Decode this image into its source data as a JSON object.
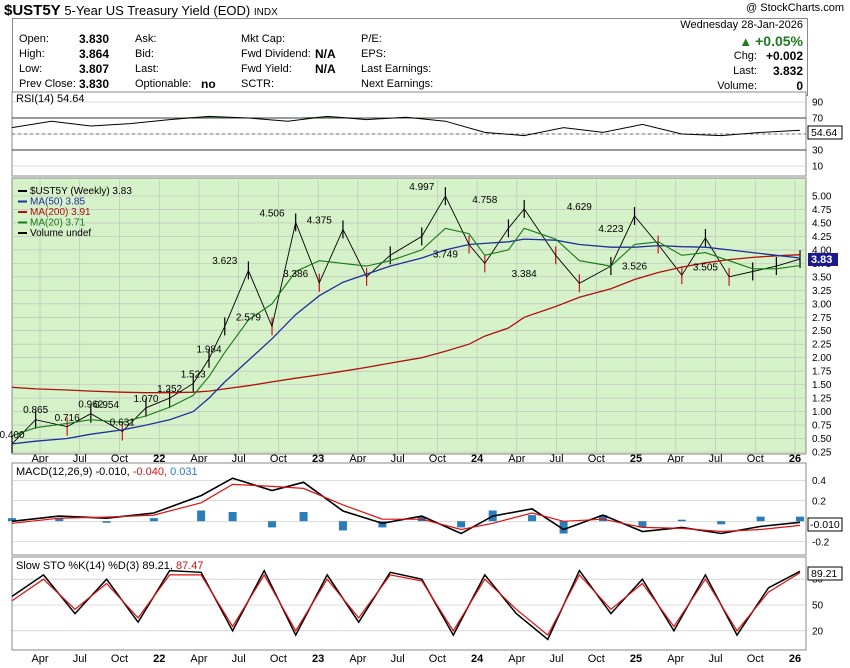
{
  "header": {
    "symbol": "$UST5Y",
    "name": "5-Year US Treasury Yield (EOD)",
    "exchange": "INDX",
    "watermark": "@ StockCharts.com",
    "date": "Wednesday  28-Jan-2026"
  },
  "quote": {
    "open_label": "Open:",
    "open": "3.830",
    "high_label": "High:",
    "high": "3.864",
    "low_label": "Low:",
    "low": "3.807",
    "prev_label": "Prev Close:",
    "prev": "3.830",
    "ask_label": "Ask:",
    "bid_label": "Bid:",
    "last_label": "Last:",
    "optionable_label": "Optionable:",
    "optionable": "no",
    "mktcap_label": "Mkt Cap:",
    "fwddiv_label": "Fwd Dividend:",
    "fwddiv": "N/A",
    "fwdyield_label": "Fwd Yield:",
    "fwdyield": "N/A",
    "sctr_label": "SCTR:",
    "pe_label": "P/E:",
    "eps_label": "EPS:",
    "lastearn_label": "Last Earnings:",
    "nextearn_label": "Next Earnings:",
    "chg_pct": "+0.05%",
    "chg_label": "Chg:",
    "chg": "+0.002",
    "last_price_label": "Last:",
    "last_price": "3.832",
    "volume_label": "Volume:",
    "volume": "0"
  },
  "colors": {
    "panel_bg": "#d6f2c8",
    "price_bar": "#000000",
    "down_bar": "#d4141c",
    "ma50": "#1f2f9c",
    "ma200": "#b01010",
    "ma20": "#157a15",
    "macd_line": "#000000",
    "signal_line": "#dd1111",
    "hist": "#2a7db8",
    "rsi_fill": "#2e7d2e",
    "price_tag": "#1a1a8c"
  },
  "chart_data": [
    {
      "type": "line",
      "panel": "RSI",
      "title": "RSI(14) 54.64",
      "label": "RSI(14) 54.64",
      "current": "54.64",
      "ylim": [
        0,
        100
      ],
      "yticks": [
        "90",
        "70",
        "50",
        "30",
        "10"
      ],
      "overbought": 70,
      "oversold": 30,
      "x": [
        0,
        0.05,
        0.1,
        0.15,
        0.2,
        0.25,
        0.3,
        0.35,
        0.4,
        0.45,
        0.5,
        0.55,
        0.6,
        0.65,
        0.7,
        0.75,
        0.8,
        0.85,
        0.9,
        0.95,
        1.0
      ],
      "values": [
        58,
        66,
        60,
        63,
        68,
        72,
        70,
        66,
        72,
        68,
        71,
        66,
        52,
        48,
        58,
        52,
        62,
        50,
        48,
        52,
        54.64
      ]
    },
    {
      "type": "line",
      "panel": "Price",
      "title": "$UST5Y (Weekly) 3.83",
      "legend": [
        {
          "label": "$UST5Y (Weekly) 3.83",
          "color": "#000000"
        },
        {
          "label": "MA(50) 3.85",
          "color": "#1f2f9c"
        },
        {
          "label": "MA(200) 3.91",
          "color": "#b01010"
        },
        {
          "label": "MA(20) 3.71",
          "color": "#157a15"
        },
        {
          "label": "Volume undef",
          "color": "#000000"
        }
      ],
      "current_tag": "3.83",
      "ylim": [
        0.25,
        5.0
      ],
      "yticks": [
        "5.00",
        "4.75",
        "4.50",
        "4.25",
        "4.00",
        "3.75",
        "3.50",
        "3.25",
        "3.00",
        "2.75",
        "2.50",
        "2.25",
        "2.00",
        "1.75",
        "1.50",
        "1.25",
        "1.00",
        "0.75",
        "0.50",
        "0.25"
      ],
      "xticks": [
        "Apr",
        "Jul",
        "Oct",
        "22",
        "Apr",
        "Jul",
        "Oct",
        "23",
        "Apr",
        "Jul",
        "Oct",
        "24",
        "Apr",
        "Jul",
        "Oct",
        "25",
        "Apr",
        "Jul",
        "Oct",
        "26"
      ],
      "x": [
        0.0,
        0.03,
        0.07,
        0.1,
        0.14,
        0.17,
        0.2,
        0.23,
        0.25,
        0.27,
        0.3,
        0.33,
        0.36,
        0.39,
        0.42,
        0.45,
        0.48,
        0.52,
        0.55,
        0.58,
        0.6,
        0.63,
        0.65,
        0.69,
        0.72,
        0.76,
        0.79,
        0.82,
        0.85,
        0.88,
        0.91,
        0.94,
        0.97,
        1.0
      ],
      "series": [
        {
          "name": "$UST5Y (Weekly)",
          "values": [
            0.4,
            0.85,
            0.72,
            0.96,
            0.63,
            1.07,
            1.25,
            1.52,
            1.98,
            2.58,
            3.62,
            2.58,
            4.51,
            3.39,
            4.38,
            3.5,
            3.9,
            4.25,
            4.997,
            4.1,
            3.75,
            4.4,
            4.76,
            3.9,
            3.38,
            3.7,
            4.629,
            4.1,
            3.53,
            4.22,
            3.5,
            3.6,
            3.7,
            3.83
          ]
        },
        {
          "name": "MA(20)",
          "values": [
            0.55,
            0.7,
            0.78,
            0.85,
            0.8,
            0.92,
            1.08,
            1.3,
            1.65,
            2.1,
            2.7,
            3.0,
            3.6,
            3.8,
            3.75,
            3.7,
            3.8,
            4.0,
            4.4,
            4.3,
            3.9,
            4.0,
            4.4,
            4.2,
            3.8,
            3.7,
            4.1,
            4.15,
            3.9,
            3.95,
            3.8,
            3.65,
            3.65,
            3.71
          ]
        },
        {
          "name": "MA(50)",
          "values": [
            0.4,
            0.45,
            0.5,
            0.58,
            0.66,
            0.75,
            0.85,
            1.0,
            1.25,
            1.55,
            1.95,
            2.35,
            2.8,
            3.15,
            3.4,
            3.55,
            3.7,
            3.85,
            4.0,
            4.1,
            4.12,
            4.15,
            4.2,
            4.18,
            4.1,
            4.05,
            4.05,
            4.08,
            4.06,
            4.05,
            4.0,
            3.95,
            3.9,
            3.85
          ]
        },
        {
          "name": "MA(200)",
          "values": [
            1.45,
            1.42,
            1.4,
            1.38,
            1.36,
            1.35,
            1.35,
            1.36,
            1.38,
            1.42,
            1.48,
            1.55,
            1.62,
            1.68,
            1.75,
            1.82,
            1.9,
            2.0,
            2.12,
            2.25,
            2.4,
            2.55,
            2.75,
            2.95,
            3.12,
            3.28,
            3.45,
            3.58,
            3.68,
            3.76,
            3.82,
            3.86,
            3.89,
            3.91
          ]
        }
      ],
      "annotations": [
        {
          "text": "0.400",
          "x": 0.0,
          "y": 0.4
        },
        {
          "text": "0.865",
          "x": 0.03,
          "y": 0.865
        },
        {
          "text": "0.716",
          "x": 0.07,
          "y": 0.716
        },
        {
          "text": "0.962",
          "x": 0.1,
          "y": 0.962
        },
        {
          "text": "0.954",
          "x": 0.12,
          "y": 0.954
        },
        {
          "text": "0.631",
          "x": 0.14,
          "y": 0.631
        },
        {
          "text": "1.070",
          "x": 0.17,
          "y": 1.07
        },
        {
          "text": "1.252",
          "x": 0.2,
          "y": 1.252
        },
        {
          "text": "1.523",
          "x": 0.23,
          "y": 1.523
        },
        {
          "text": "1.984",
          "x": 0.25,
          "y": 1.984
        },
        {
          "text": "2.579",
          "x": 0.3,
          "y": 2.579
        },
        {
          "text": "3.623",
          "x": 0.27,
          "y": 3.623
        },
        {
          "text": "4.506",
          "x": 0.33,
          "y": 4.506
        },
        {
          "text": "3.386",
          "x": 0.36,
          "y": 3.386
        },
        {
          "text": "4.375",
          "x": 0.39,
          "y": 4.375
        },
        {
          "text": "4.997",
          "x": 0.52,
          "y": 4.997
        },
        {
          "text": "3.749",
          "x": 0.55,
          "y": 3.749
        },
        {
          "text": "4.758",
          "x": 0.6,
          "y": 4.758
        },
        {
          "text": "3.384",
          "x": 0.65,
          "y": 3.384
        },
        {
          "text": "4.629",
          "x": 0.72,
          "y": 4.629
        },
        {
          "text": "4.223",
          "x": 0.76,
          "y": 4.223
        },
        {
          "text": "3.526",
          "x": 0.79,
          "y": 3.526
        },
        {
          "text": "3.505",
          "x": 0.88,
          "y": 3.505
        }
      ]
    },
    {
      "type": "line",
      "panel": "MACD",
      "title": "MACD(12,26,9) -0.010, -0.040, 0.031",
      "label_a": "MACD(12,26,9) -0.010,",
      "label_b": "-0.040,",
      "label_c": "0.031",
      "current": "-0.010",
      "ylim": [
        -0.3,
        0.5
      ],
      "yticks": [
        "0.4",
        "0.2",
        "0.0",
        "-0.2"
      ],
      "x": [
        0,
        0.06,
        0.12,
        0.18,
        0.24,
        0.28,
        0.33,
        0.37,
        0.42,
        0.47,
        0.52,
        0.57,
        0.61,
        0.66,
        0.7,
        0.75,
        0.8,
        0.85,
        0.9,
        0.95,
        1.0
      ],
      "series": [
        {
          "name": "MACD",
          "values": [
            0.0,
            0.05,
            0.03,
            0.08,
            0.25,
            0.42,
            0.3,
            0.38,
            0.1,
            -0.02,
            0.05,
            -0.12,
            0.05,
            0.12,
            -0.08,
            0.06,
            -0.1,
            -0.06,
            -0.12,
            -0.05,
            -0.01
          ]
        },
        {
          "name": "Signal",
          "values": [
            -0.02,
            0.03,
            0.04,
            0.06,
            0.18,
            0.36,
            0.34,
            0.32,
            0.16,
            0.02,
            0.02,
            -0.08,
            -0.02,
            0.08,
            0.0,
            0.02,
            -0.06,
            -0.07,
            -0.1,
            -0.08,
            -0.04
          ]
        }
      ]
    },
    {
      "type": "line",
      "panel": "Slow STO",
      "title": "Slow STO %K(14) %D(3) 89.21, 87.47",
      "label_a": "Slow STO %K(14) %D(3) 89.21,",
      "label_b": "87.47",
      "current": "89.21",
      "ylim": [
        0,
        100
      ],
      "yticks": [
        "80",
        "50",
        "20"
      ],
      "x": [
        0,
        0.04,
        0.08,
        0.12,
        0.16,
        0.2,
        0.24,
        0.28,
        0.32,
        0.36,
        0.4,
        0.44,
        0.48,
        0.52,
        0.56,
        0.6,
        0.64,
        0.68,
        0.72,
        0.76,
        0.8,
        0.84,
        0.88,
        0.92,
        0.96,
        1.0
      ],
      "series": [
        {
          "name": "%K",
          "values": [
            60,
            85,
            40,
            80,
            30,
            90,
            88,
            20,
            90,
            15,
            85,
            30,
            88,
            80,
            15,
            85,
            40,
            10,
            90,
            40,
            80,
            20,
            85,
            15,
            70,
            89.21
          ]
        },
        {
          "name": "%D",
          "values": [
            55,
            80,
            45,
            75,
            35,
            85,
            85,
            25,
            85,
            20,
            80,
            35,
            85,
            78,
            20,
            80,
            45,
            15,
            85,
            45,
            75,
            25,
            80,
            20,
            65,
            87.47
          ]
        }
      ]
    }
  ]
}
